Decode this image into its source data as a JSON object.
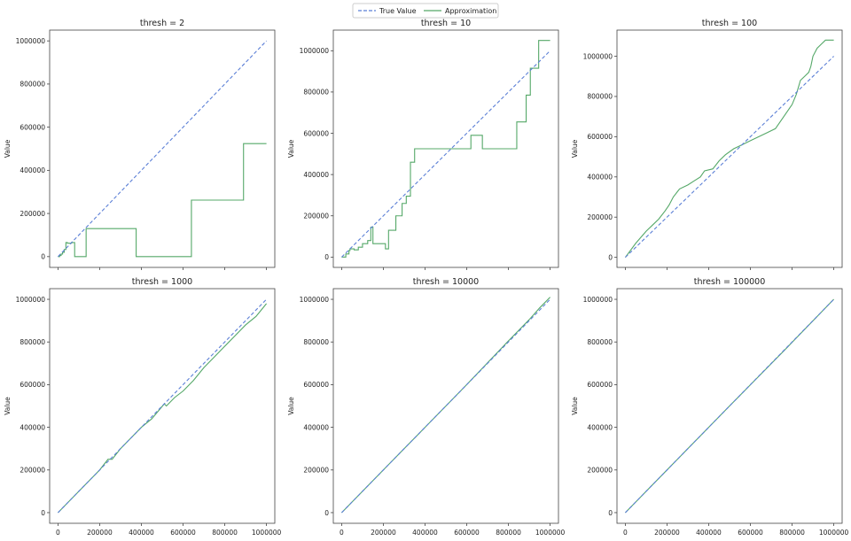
{
  "legend": {
    "entries": [
      {
        "label": "True Value",
        "style": "dashed",
        "color": "#5b7fd6"
      },
      {
        "label": "Approximation",
        "style": "solid",
        "color": "#55a868"
      }
    ],
    "placement": "top-center"
  },
  "colors": {
    "true_value": "#5b7fd6",
    "approximation": "#55a868",
    "axes": "#444444",
    "tick_text": "#222222"
  },
  "chart_data": [
    {
      "type": "line",
      "title": "thresh = 2",
      "xlabel": "",
      "ylabel": "Value",
      "xlim": [
        -40000,
        1040000
      ],
      "ylim": [
        -50000,
        1050000
      ],
      "yticks": [
        0,
        200000,
        400000,
        600000,
        800000,
        1000000
      ],
      "ytick_labels": [
        "0",
        "200000",
        "400000",
        "600000",
        "800000",
        "1000000"
      ],
      "xticks": [
        0,
        200000,
        400000,
        600000,
        800000,
        1000000
      ],
      "xtick_labels": [],
      "series": [
        {
          "name": "True Value",
          "x": [
            0,
            1000000
          ],
          "y": [
            0,
            1000000
          ]
        },
        {
          "name": "Approximation",
          "x": [
            0,
            8000,
            8000,
            15000,
            15000,
            22000,
            22000,
            30000,
            30000,
            38000,
            38000,
            45000,
            45000,
            65000,
            65000,
            80000,
            80000,
            95000,
            95000,
            135000,
            135000,
            375000,
            375000,
            640000,
            640000,
            890000,
            890000,
            1000000
          ],
          "y": [
            0,
            0,
            5000,
            5000,
            12000,
            12000,
            20000,
            20000,
            33000,
            33000,
            65000,
            65000,
            62000,
            62000,
            65000,
            65000,
            0,
            0,
            0,
            0,
            130000,
            130000,
            0,
            0,
            262000,
            262000,
            524000,
            524000
          ]
        }
      ]
    },
    {
      "type": "line",
      "title": "thresh = 10",
      "xlabel": "",
      "ylabel": "Value",
      "xlim": [
        -40000,
        1040000
      ],
      "ylim": [
        -50000,
        1100000
      ],
      "yticks": [
        0,
        200000,
        400000,
        600000,
        800000,
        1000000
      ],
      "ytick_labels": [
        "0",
        "200000",
        "400000",
        "600000",
        "800000",
        "1000000"
      ],
      "xticks": [
        0,
        200000,
        400000,
        600000,
        800000,
        1000000
      ],
      "xtick_labels": [],
      "series": [
        {
          "name": "True Value",
          "x": [
            0,
            1000000
          ],
          "y": [
            0,
            1000000
          ]
        },
        {
          "name": "Approximation",
          "x": [
            0,
            20000,
            20000,
            35000,
            35000,
            40000,
            40000,
            60000,
            60000,
            80000,
            80000,
            100000,
            100000,
            125000,
            125000,
            140000,
            140000,
            150000,
            150000,
            210000,
            210000,
            225000,
            225000,
            240000,
            240000,
            260000,
            260000,
            290000,
            290000,
            310000,
            310000,
            330000,
            330000,
            350000,
            350000,
            430000,
            430000,
            620000,
            620000,
            675000,
            675000,
            840000,
            840000,
            885000,
            885000,
            905000,
            905000,
            945000,
            945000,
            1000000
          ],
          "y": [
            0,
            0,
            15000,
            15000,
            32000,
            32000,
            40000,
            40000,
            35000,
            35000,
            48000,
            48000,
            65000,
            65000,
            80000,
            80000,
            145000,
            145000,
            65000,
            65000,
            40000,
            40000,
            130000,
            130000,
            130000,
            130000,
            200000,
            200000,
            260000,
            260000,
            295000,
            295000,
            460000,
            460000,
            525000,
            525000,
            525000,
            525000,
            590000,
            590000,
            525000,
            525000,
            655000,
            655000,
            785000,
            785000,
            915000,
            915000,
            1050000,
            1050000
          ]
        }
      ]
    },
    {
      "type": "line",
      "title": "thresh = 100",
      "xlabel": "",
      "ylabel": "Value",
      "xlim": [
        -40000,
        1040000
      ],
      "ylim": [
        -50000,
        1130000
      ],
      "yticks": [
        0,
        200000,
        400000,
        600000,
        800000,
        1000000
      ],
      "ytick_labels": [
        "0",
        "200000",
        "400000",
        "600000",
        "800000",
        "1000000"
      ],
      "xticks": [
        0,
        200000,
        400000,
        600000,
        800000,
        1000000
      ],
      "xtick_labels": [],
      "series": [
        {
          "name": "True Value",
          "x": [
            0,
            1000000
          ],
          "y": [
            0,
            1000000
          ]
        },
        {
          "name": "Approximation",
          "x": [
            0,
            50000,
            100000,
            130000,
            160000,
            190000,
            210000,
            230000,
            260000,
            300000,
            330000,
            360000,
            380000,
            420000,
            450000,
            480000,
            520000,
            560000,
            600000,
            640000,
            680000,
            720000,
            760000,
            800000,
            820000,
            840000,
            860000,
            880000,
            890000,
            900000,
            920000,
            940000,
            960000,
            1000000
          ],
          "y": [
            0,
            70000,
            130000,
            160000,
            190000,
            230000,
            260000,
            300000,
            340000,
            360000,
            380000,
            400000,
            430000,
            440000,
            480000,
            510000,
            540000,
            560000,
            580000,
            600000,
            620000,
            640000,
            700000,
            760000,
            810000,
            880000,
            900000,
            920000,
            950000,
            1000000,
            1040000,
            1060000,
            1080000,
            1080000
          ]
        }
      ]
    },
    {
      "type": "line",
      "title": "thresh = 1000",
      "xlabel": "",
      "ylabel": "Value",
      "xlim": [
        -40000,
        1040000
      ],
      "ylim": [
        -50000,
        1050000
      ],
      "yticks": [
        0,
        200000,
        400000,
        600000,
        800000,
        1000000
      ],
      "ytick_labels": [
        "0",
        "200000",
        "400000",
        "600000",
        "800000",
        "1000000"
      ],
      "xticks": [
        0,
        200000,
        400000,
        600000,
        800000,
        1000000
      ],
      "xtick_labels": [
        "0",
        "200000",
        "400000",
        "600000",
        "800000",
        "1000000"
      ],
      "series": [
        {
          "name": "True Value",
          "x": [
            0,
            1000000
          ],
          "y": [
            0,
            1000000
          ]
        },
        {
          "name": "Approximation",
          "x": [
            0,
            100000,
            200000,
            240000,
            260000,
            300000,
            350000,
            400000,
            450000,
            510000,
            520000,
            560000,
            600000,
            650000,
            700000,
            750000,
            800000,
            850000,
            900000,
            950000,
            1000000
          ],
          "y": [
            0,
            100000,
            200000,
            250000,
            250000,
            300000,
            350000,
            400000,
            440000,
            510000,
            500000,
            540000,
            570000,
            620000,
            680000,
            730000,
            780000,
            830000,
            880000,
            920000,
            980000
          ]
        }
      ]
    },
    {
      "type": "line",
      "title": "thresh = 10000",
      "xlabel": "",
      "ylabel": "Value",
      "xlim": [
        -40000,
        1040000
      ],
      "ylim": [
        -50000,
        1050000
      ],
      "yticks": [
        0,
        200000,
        400000,
        600000,
        800000,
        1000000
      ],
      "ytick_labels": [
        "0",
        "200000",
        "400000",
        "600000",
        "800000",
        "1000000"
      ],
      "xticks": [
        0,
        200000,
        400000,
        600000,
        800000,
        1000000
      ],
      "xtick_labels": [
        "0",
        "200000",
        "400000",
        "600000",
        "800000",
        "1000000"
      ],
      "series": [
        {
          "name": "True Value",
          "x": [
            0,
            1000000
          ],
          "y": [
            0,
            1000000
          ]
        },
        {
          "name": "Approximation",
          "x": [
            0,
            200000,
            400000,
            600000,
            800000,
            900000,
            950000,
            1000000
          ],
          "y": [
            0,
            200000,
            400000,
            600000,
            805000,
            905000,
            960000,
            1010000
          ]
        }
      ]
    },
    {
      "type": "line",
      "title": "thresh = 100000",
      "xlabel": "",
      "ylabel": "Value",
      "xlim": [
        -40000,
        1040000
      ],
      "ylim": [
        -50000,
        1050000
      ],
      "yticks": [
        0,
        200000,
        400000,
        600000,
        800000,
        1000000
      ],
      "ytick_labels": [
        "0",
        "200000",
        "400000",
        "600000",
        "800000",
        "1000000"
      ],
      "xticks": [
        0,
        200000,
        400000,
        600000,
        800000,
        1000000
      ],
      "xtick_labels": [
        "0",
        "200000",
        "400000",
        "600000",
        "800000",
        "1000000"
      ],
      "series": [
        {
          "name": "True Value",
          "x": [
            0,
            1000000
          ],
          "y": [
            0,
            1000000
          ]
        },
        {
          "name": "Approximation",
          "x": [
            0,
            250000,
            500000,
            750000,
            1000000
          ],
          "y": [
            0,
            250000,
            500000,
            748000,
            1000000
          ]
        }
      ]
    }
  ]
}
